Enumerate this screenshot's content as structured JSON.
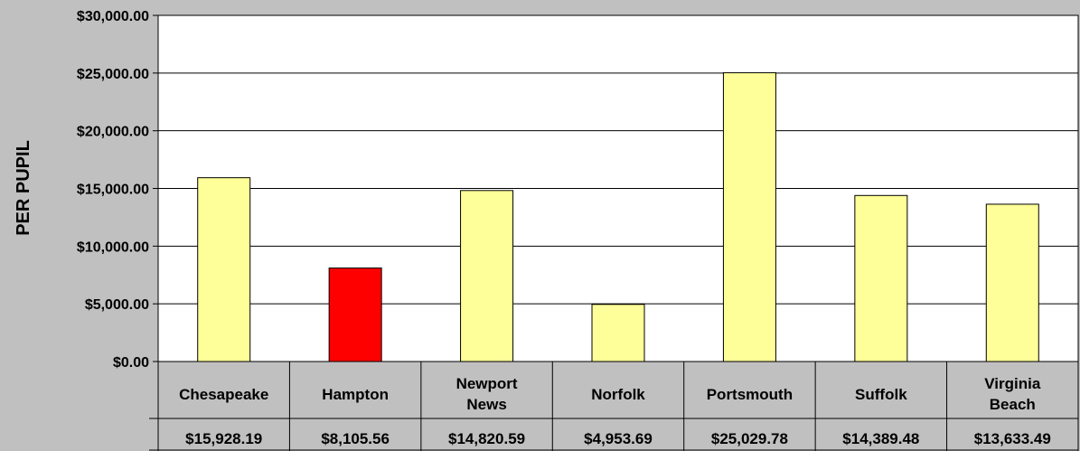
{
  "chart_data": {
    "type": "bar",
    "ylabel": "PER PUPIL",
    "ylim": [
      0,
      30000
    ],
    "yticks": [
      "$0.00",
      "$5,000.00",
      "$10,000.00",
      "$15,000.00",
      "$20,000.00",
      "$25,000.00",
      "$30,000.00"
    ],
    "ytick_values": [
      0,
      5000,
      10000,
      15000,
      20000,
      25000,
      30000
    ],
    "categories": [
      [
        "Chesapeake"
      ],
      [
        "Hampton"
      ],
      [
        "Newport",
        "News"
      ],
      [
        "Norfolk"
      ],
      [
        "Portsmouth"
      ],
      [
        "Suffolk"
      ],
      [
        "Virginia",
        "Beach"
      ]
    ],
    "values": [
      15928.19,
      8105.56,
      14820.59,
      4953.69,
      25029.78,
      14389.48,
      13633.49
    ],
    "value_labels": [
      "$15,928.19",
      "$8,105.56",
      "$14,820.59",
      "$4,953.69",
      "$25,029.78",
      "$14,389.48",
      "$13,633.49"
    ],
    "bar_colors": [
      "#ffff99",
      "#ff0000",
      "#ffff99",
      "#ffff99",
      "#ffff99",
      "#ffff99",
      "#ffff99"
    ],
    "plot_background": "#ffffff",
    "figure_background": "#c0c0c0",
    "grid": true,
    "data_table_below": true
  }
}
